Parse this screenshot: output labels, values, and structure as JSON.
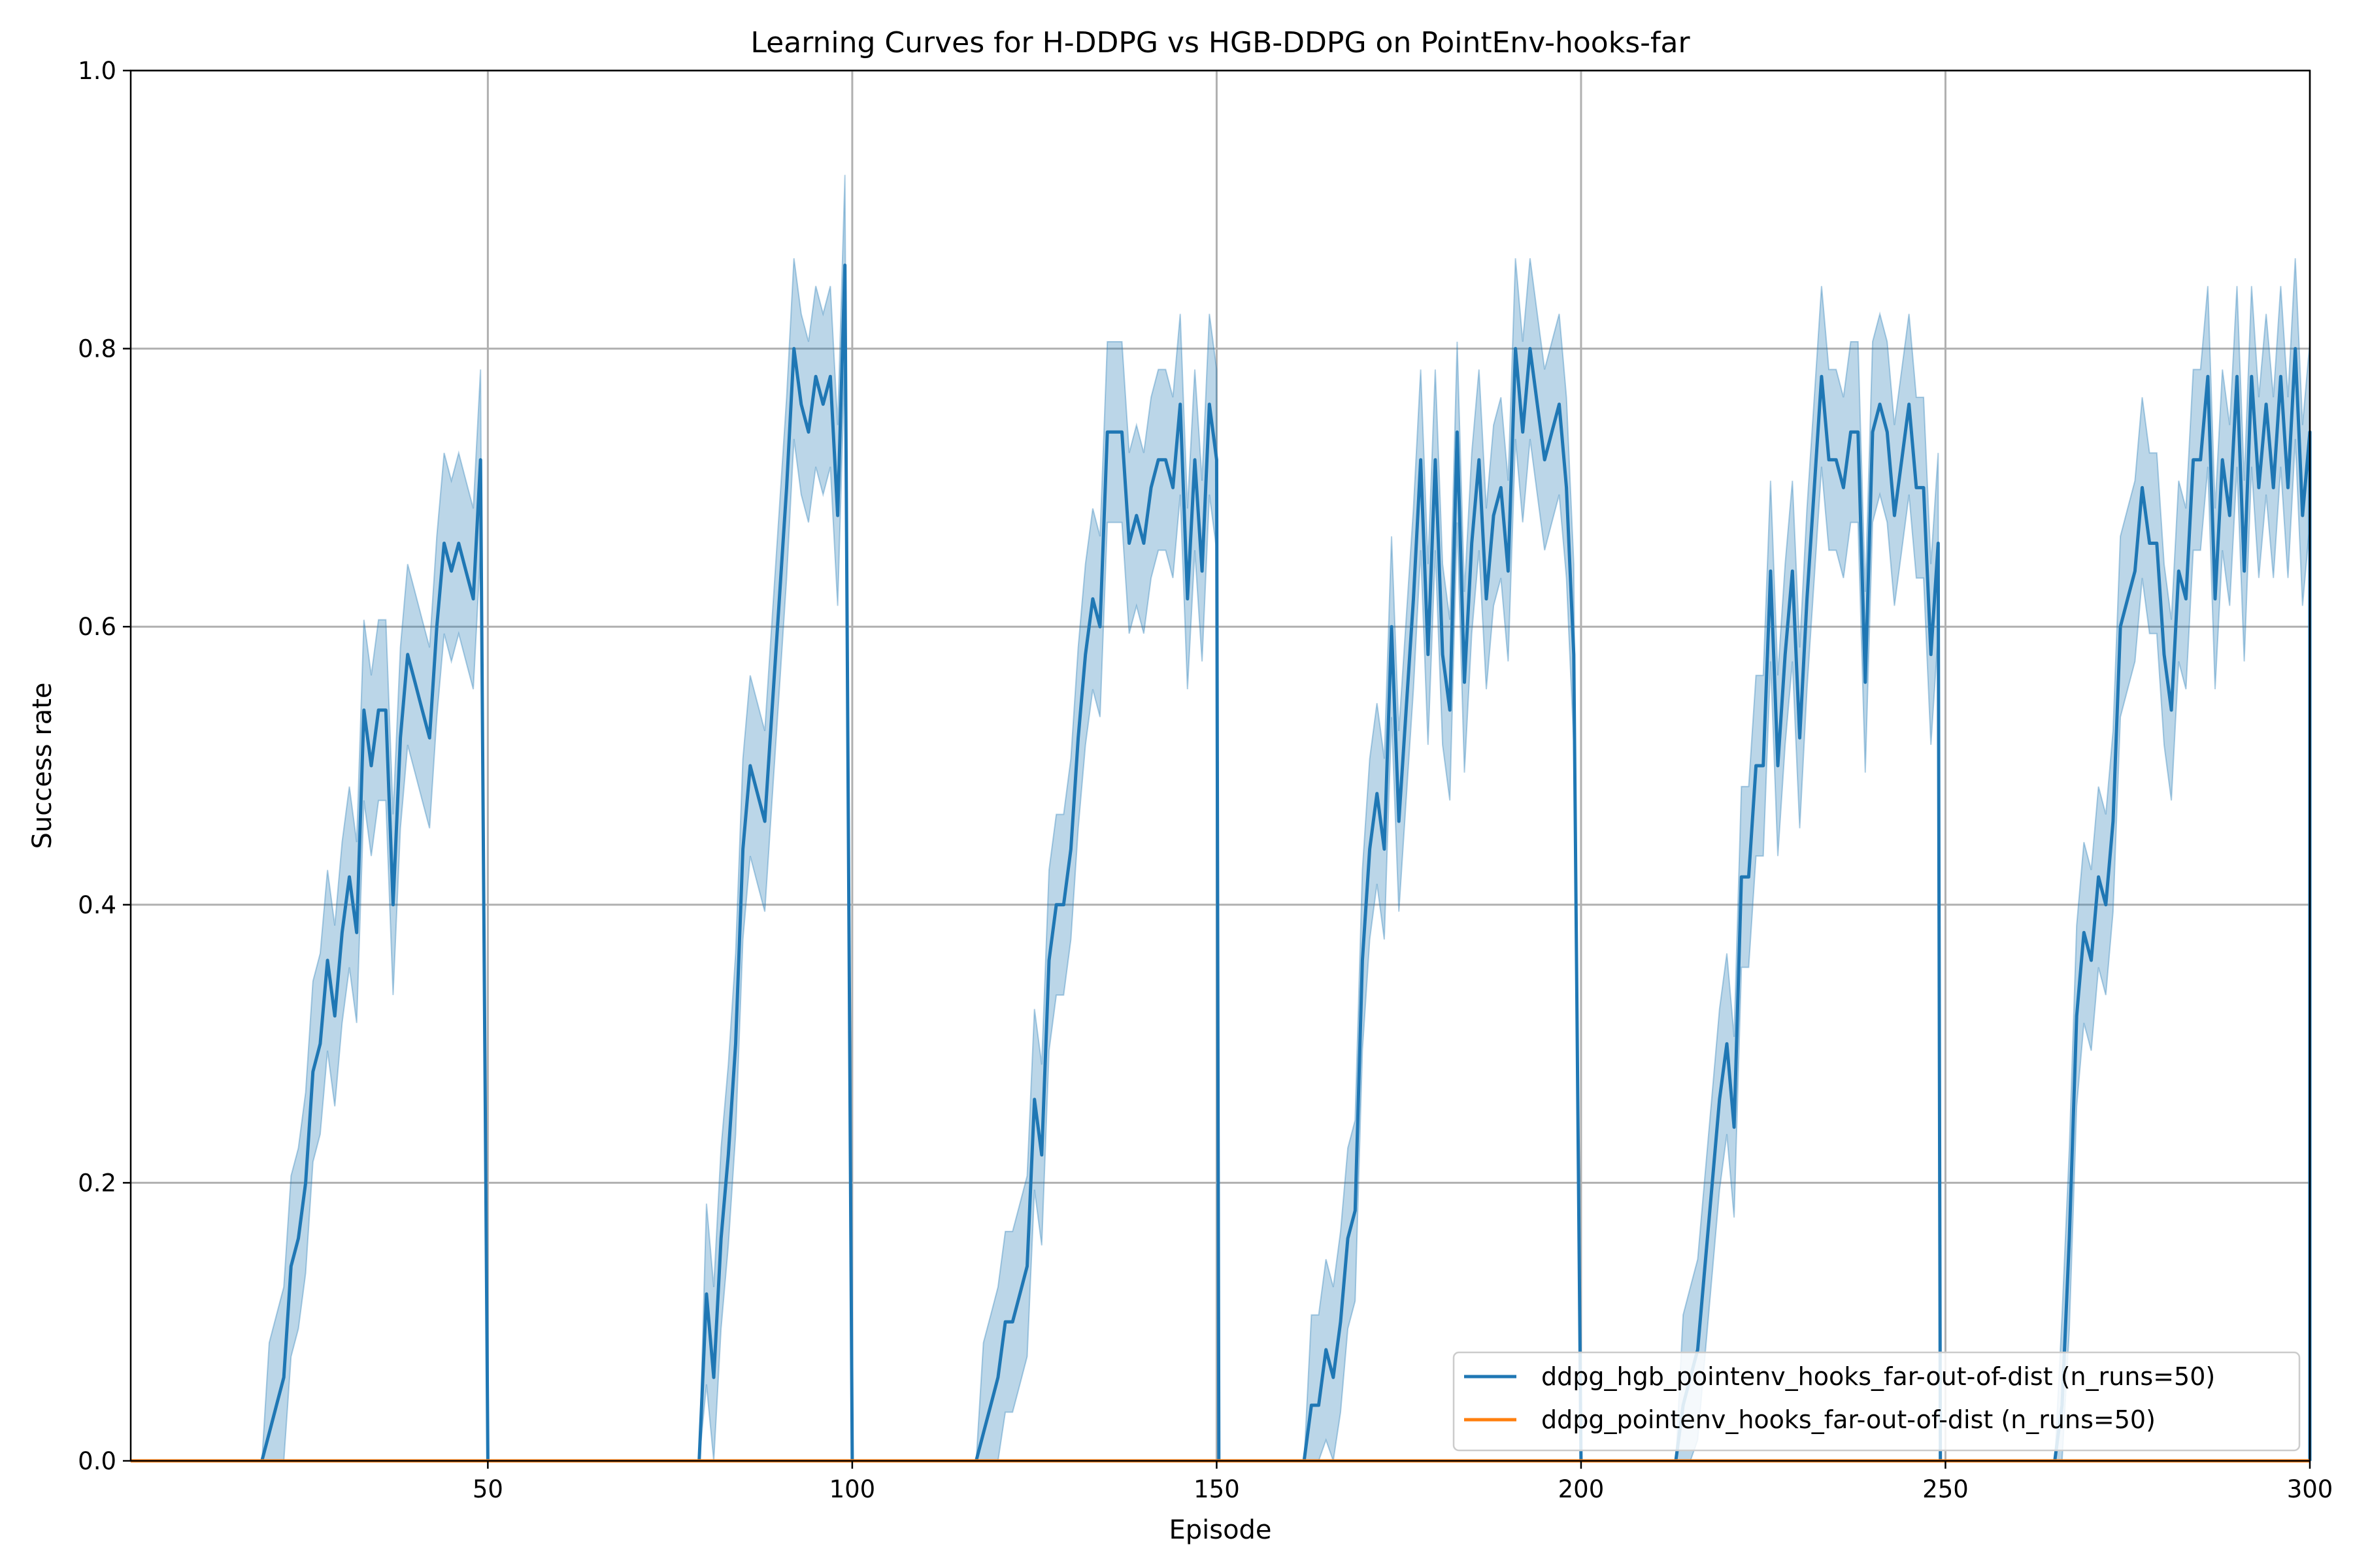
{
  "chart_data": {
    "type": "line",
    "title": "Learning Curves for H-DDPG vs HGB-DDPG on PointEnv-hooks-far",
    "xlabel": "Episode",
    "ylabel": "Success rate",
    "xlim": [
      1,
      300
    ],
    "ylim": [
      0.0,
      1.0
    ],
    "xticks": [
      50,
      100,
      150,
      200,
      250,
      300
    ],
    "yticks": [
      0.0,
      0.2,
      0.4,
      0.6,
      0.8,
      1.0
    ],
    "xtick_labels": [
      "50",
      "100",
      "150",
      "200",
      "250",
      "300"
    ],
    "ytick_labels": [
      "0.0",
      "0.2",
      "0.4",
      "0.6",
      "0.8",
      "1.0"
    ],
    "grid": true,
    "legend_position": "bottom-right",
    "series": [
      {
        "name": "ddpg_hgb_pointenv_hooks_far-out-of-dist (n_runs=50)",
        "color": "#1f77b4",
        "band_color": "#1f77b4",
        "points": [
          [
            1,
            0
          ],
          [
            19,
            0
          ],
          [
            20,
            0.02
          ],
          [
            21,
            0.04
          ],
          [
            22,
            0.06
          ],
          [
            23,
            0.14
          ],
          [
            24,
            0.16
          ],
          [
            25,
            0.2
          ],
          [
            26,
            0.28
          ],
          [
            27,
            0.3
          ],
          [
            28,
            0.36
          ],
          [
            29,
            0.32
          ],
          [
            30,
            0.38
          ],
          [
            31,
            0.42
          ],
          [
            32,
            0.38
          ],
          [
            33,
            0.54
          ],
          [
            34,
            0.5
          ],
          [
            35,
            0.54
          ],
          [
            36,
            0.54
          ],
          [
            37,
            0.4
          ],
          [
            38,
            0.52
          ],
          [
            39,
            0.58
          ],
          [
            40,
            0.56
          ],
          [
            41,
            0.54
          ],
          [
            42,
            0.52
          ],
          [
            43,
            0.6
          ],
          [
            44,
            0.66
          ],
          [
            45,
            0.64
          ],
          [
            46,
            0.66
          ],
          [
            47,
            0.64
          ],
          [
            48,
            0.62
          ],
          [
            49,
            0.72
          ],
          [
            50,
            0
          ],
          [
            79,
            0
          ],
          [
            80,
            0.12
          ],
          [
            81,
            0.06
          ],
          [
            82,
            0.16
          ],
          [
            83,
            0.22
          ],
          [
            84,
            0.3
          ],
          [
            85,
            0.44
          ],
          [
            86,
            0.5
          ],
          [
            87,
            0.48
          ],
          [
            88,
            0.46
          ],
          [
            89,
            0.54
          ],
          [
            90,
            0.62
          ],
          [
            91,
            0.7
          ],
          [
            92,
            0.8
          ],
          [
            93,
            0.76
          ],
          [
            94,
            0.74
          ],
          [
            95,
            0.78
          ],
          [
            96,
            0.76
          ],
          [
            97,
            0.78
          ],
          [
            98,
            0.68
          ],
          [
            99,
            0.86
          ],
          [
            100,
            0
          ],
          [
            117,
            0
          ],
          [
            118,
            0.02
          ],
          [
            119,
            0.04
          ],
          [
            120,
            0.06
          ],
          [
            121,
            0.1
          ],
          [
            122,
            0.1
          ],
          [
            123,
            0.12
          ],
          [
            124,
            0.14
          ],
          [
            125,
            0.26
          ],
          [
            126,
            0.22
          ],
          [
            127,
            0.36
          ],
          [
            128,
            0.4
          ],
          [
            129,
            0.4
          ],
          [
            130,
            0.44
          ],
          [
            131,
            0.52
          ],
          [
            132,
            0.58
          ],
          [
            133,
            0.62
          ],
          [
            134,
            0.6
          ],
          [
            135,
            0.74
          ],
          [
            136,
            0.74
          ],
          [
            137,
            0.74
          ],
          [
            138,
            0.66
          ],
          [
            139,
            0.68
          ],
          [
            140,
            0.66
          ],
          [
            141,
            0.7
          ],
          [
            142,
            0.72
          ],
          [
            143,
            0.72
          ],
          [
            144,
            0.7
          ],
          [
            145,
            0.76
          ],
          [
            146,
            0.62
          ],
          [
            147,
            0.72
          ],
          [
            148,
            0.64
          ],
          [
            149,
            0.76
          ],
          [
            150,
            0.72
          ],
          [
            150.3,
            0
          ],
          [
            162,
            0
          ],
          [
            163,
            0.04
          ],
          [
            164,
            0.04
          ],
          [
            165,
            0.08
          ],
          [
            166,
            0.06
          ],
          [
            167,
            0.1
          ],
          [
            168,
            0.16
          ],
          [
            169,
            0.18
          ],
          [
            170,
            0.36
          ],
          [
            171,
            0.44
          ],
          [
            172,
            0.48
          ],
          [
            173,
            0.44
          ],
          [
            174,
            0.6
          ],
          [
            175,
            0.46
          ],
          [
            176,
            0.54
          ],
          [
            177,
            0.62
          ],
          [
            178,
            0.72
          ],
          [
            179,
            0.58
          ],
          [
            180,
            0.72
          ],
          [
            181,
            0.58
          ],
          [
            182,
            0.54
          ],
          [
            183,
            0.74
          ],
          [
            184,
            0.56
          ],
          [
            185,
            0.66
          ],
          [
            186,
            0.72
          ],
          [
            187,
            0.62
          ],
          [
            188,
            0.68
          ],
          [
            189,
            0.7
          ],
          [
            190,
            0.64
          ],
          [
            191,
            0.8
          ],
          [
            192,
            0.74
          ],
          [
            193,
            0.8
          ],
          [
            194,
            0.76
          ],
          [
            195,
            0.72
          ],
          [
            196,
            0.74
          ],
          [
            197,
            0.76
          ],
          [
            198,
            0.7
          ],
          [
            199,
            0.58
          ],
          [
            200,
            0
          ],
          [
            213,
            0
          ],
          [
            214,
            0.04
          ],
          [
            215,
            0.06
          ],
          [
            216,
            0.08
          ],
          [
            217,
            0.14
          ],
          [
            218,
            0.2
          ],
          [
            219,
            0.26
          ],
          [
            220,
            0.3
          ],
          [
            221,
            0.24
          ],
          [
            222,
            0.42
          ],
          [
            223,
            0.42
          ],
          [
            224,
            0.5
          ],
          [
            225,
            0.5
          ],
          [
            226,
            0.64
          ],
          [
            227,
            0.5
          ],
          [
            228,
            0.58
          ],
          [
            229,
            0.64
          ],
          [
            230,
            0.52
          ],
          [
            231,
            0.62
          ],
          [
            232,
            0.7
          ],
          [
            233,
            0.78
          ],
          [
            234,
            0.72
          ],
          [
            235,
            0.72
          ],
          [
            236,
            0.7
          ],
          [
            237,
            0.74
          ],
          [
            238,
            0.74
          ],
          [
            239,
            0.56
          ],
          [
            240,
            0.74
          ],
          [
            241,
            0.76
          ],
          [
            242,
            0.74
          ],
          [
            243,
            0.68
          ],
          [
            244,
            0.72
          ],
          [
            245,
            0.76
          ],
          [
            246,
            0.7
          ],
          [
            247,
            0.7
          ],
          [
            248,
            0.58
          ],
          [
            249,
            0.66
          ],
          [
            249.3,
            0
          ],
          [
            265,
            0
          ],
          [
            266,
            0.04
          ],
          [
            267,
            0.16
          ],
          [
            268,
            0.32
          ],
          [
            269,
            0.38
          ],
          [
            270,
            0.36
          ],
          [
            271,
            0.42
          ],
          [
            272,
            0.4
          ],
          [
            273,
            0.46
          ],
          [
            274,
            0.6
          ],
          [
            275,
            0.62
          ],
          [
            276,
            0.64
          ],
          [
            277,
            0.7
          ],
          [
            278,
            0.66
          ],
          [
            279,
            0.66
          ],
          [
            280,
            0.58
          ],
          [
            281,
            0.54
          ],
          [
            282,
            0.64
          ],
          [
            283,
            0.62
          ],
          [
            284,
            0.72
          ],
          [
            285,
            0.72
          ],
          [
            286,
            0.78
          ],
          [
            287,
            0.62
          ],
          [
            288,
            0.72
          ],
          [
            289,
            0.68
          ],
          [
            290,
            0.78
          ],
          [
            291,
            0.64
          ],
          [
            292,
            0.78
          ],
          [
            293,
            0.7
          ],
          [
            294,
            0.76
          ],
          [
            295,
            0.7
          ],
          [
            296,
            0.78
          ],
          [
            297,
            0.7
          ],
          [
            298,
            0.8
          ],
          [
            299,
            0.68
          ],
          [
            300,
            0.74
          ],
          [
            300,
            0
          ]
        ],
        "band_halfwidth": 0.065
      },
      {
        "name": "ddpg_pointenv_hooks_far-out-of-dist (n_runs=50)",
        "color": "#ff7f0e",
        "points": [
          [
            1,
            0
          ],
          [
            300,
            0
          ]
        ]
      }
    ]
  }
}
